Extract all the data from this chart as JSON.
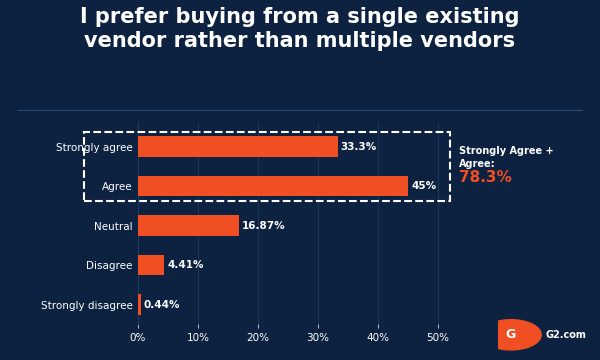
{
  "title": "I prefer buying from a single existing\nvendor rather than multiple vendors",
  "title_fontsize": 15,
  "title_color": "#ffffff",
  "background_color": "#0d2240",
  "bar_color": "#f04e23",
  "categories": [
    "Strongly disagree",
    "Disagree",
    "Neutral",
    "Agree",
    "Strongly agree"
  ],
  "values": [
    0.44,
    4.41,
    16.87,
    45.0,
    33.3
  ],
  "labels": [
    "0.44%",
    "4.41%",
    "16.87%",
    "45%",
    "33.3%"
  ],
  "xlim": [
    0,
    55
  ],
  "xticks": [
    0,
    10,
    20,
    30,
    40,
    50
  ],
  "xtick_labels": [
    "0%",
    "10%",
    "20%",
    "30%",
    "40%",
    "50%"
  ],
  "annotation_text": "Strongly Agree +\nAgree:",
  "annotation_value": "78.3%",
  "annotation_value_color": "#f04e23",
  "annotation_text_color": "#ffffff",
  "tick_label_color": "#ffffff",
  "grid_color": "#1e3a5f",
  "separator_color": "#2a4a70",
  "dashed_box_color": "#ffffff",
  "g2_logo_color": "#f04e23",
  "bar_height": 0.52
}
